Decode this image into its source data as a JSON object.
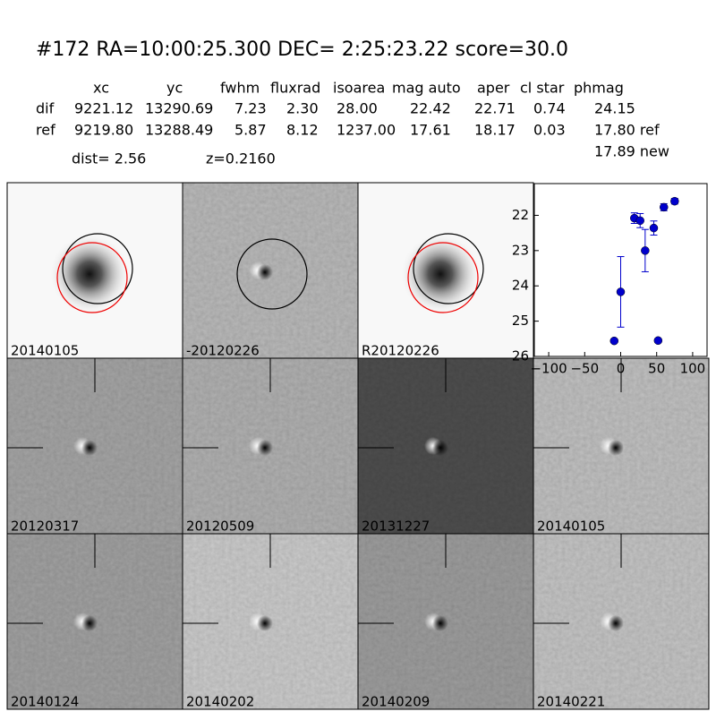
{
  "header": {
    "title": "#172   RA=10:00:25.300 DEC= 2:25:23.22       score=30.0",
    "columns": [
      "xc",
      "yc",
      "fwhm",
      "fluxrad",
      "isoarea",
      "mag auto",
      "aper",
      "cl star",
      "phmag"
    ],
    "rows": [
      [
        "dif",
        "9221.12",
        "13290.69",
        "7.23",
        "2.30",
        "28.00",
        "22.42",
        "22.71",
        "0.74",
        "24.15"
      ],
      [
        "ref",
        "9219.80",
        "13288.49",
        "5.87",
        "8.12",
        "1237.00",
        "17.61",
        "18.17",
        "0.03",
        "17.80 ref"
      ]
    ],
    "extra": "17.89 new",
    "dist": "dist=  2.56",
    "z": "z=0.2160"
  },
  "panels": [
    {
      "label": "20140105"
    },
    {
      "label": "-20120226"
    },
    {
      "label": "R20120226"
    },
    {
      "label": "20120317"
    },
    {
      "label": "20120509"
    },
    {
      "label": "20131227"
    },
    {
      "label": "20140105",
      "color": "#ff0000"
    },
    {
      "label": "20140124"
    },
    {
      "label": "20140202"
    },
    {
      "label": "20140209"
    },
    {
      "label": "20140221"
    }
  ],
  "chart_data": {
    "type": "scatter",
    "x": [
      -9,
      0,
      19,
      27,
      34,
      46,
      52,
      60,
      75
    ],
    "series": [
      {
        "color": "#0000cc",
        "values": [
          25.56,
          24.17,
          22.08,
          22.15,
          23.0,
          22.36,
          25.55,
          21.77,
          21.6
        ],
        "errors": [
          0.05,
          1.0,
          0.15,
          0.2,
          0.6,
          0.2,
          0.05,
          0.1,
          0.08
        ]
      }
    ],
    "xlim": [
      -120,
      120
    ],
    "ylim": [
      26,
      21.1
    ],
    "xticks": [
      {
        "value": -100,
        "label": "−100"
      },
      {
        "value": -50,
        "label": "−50"
      },
      0,
      50,
      100
    ],
    "yticks": [
      22,
      23,
      24,
      25,
      26
    ]
  }
}
